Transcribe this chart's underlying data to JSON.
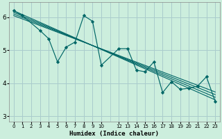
{
  "xlabel": "Humidex (Indice chaleur)",
  "bg_color": "#cceedd",
  "grid_color": "#aacccc",
  "line_color": "#006666",
  "xlim": [
    -0.5,
    23.5
  ],
  "ylim": [
    2.85,
    6.45
  ],
  "yticks": [
    3,
    4,
    5,
    6
  ],
  "xtick_positions": [
    0,
    1,
    2,
    3,
    4,
    5,
    6,
    7,
    8,
    9,
    10,
    12,
    13,
    14,
    15,
    16,
    17,
    18,
    19,
    20,
    21,
    22,
    23
  ],
  "xtick_labels": [
    "0",
    "1",
    "2",
    "3",
    "4",
    "5",
    "6",
    "7",
    "8",
    "9",
    "10",
    "12",
    "13",
    "14",
    "15",
    "16",
    "17",
    "18",
    "19",
    "20",
    "21",
    "22",
    "23"
  ],
  "series": [
    [
      0,
      6.2
    ],
    [
      1,
      6.05
    ],
    [
      3,
      5.6
    ],
    [
      4,
      5.35
    ],
    [
      5,
      4.65
    ],
    [
      6,
      5.1
    ],
    [
      7,
      5.25
    ],
    [
      8,
      6.05
    ],
    [
      9,
      5.88
    ],
    [
      10,
      4.55
    ],
    [
      12,
      5.05
    ],
    [
      13,
      5.05
    ],
    [
      14,
      4.4
    ],
    [
      15,
      4.35
    ],
    [
      16,
      4.65
    ],
    [
      17,
      3.72
    ],
    [
      18,
      4.05
    ],
    [
      19,
      3.82
    ],
    [
      20,
      3.85
    ],
    [
      21,
      3.92
    ],
    [
      22,
      4.2
    ],
    [
      23,
      3.45
    ]
  ],
  "trend_lines": [
    {
      "x0": 0,
      "y0": 6.2,
      "x1": 23,
      "y1": 3.5
    },
    {
      "x0": 0,
      "y0": 6.15,
      "x1": 23,
      "y1": 3.58
    },
    {
      "x0": 0,
      "y0": 6.1,
      "x1": 23,
      "y1": 3.66
    },
    {
      "x0": 0,
      "y0": 6.05,
      "x1": 23,
      "y1": 3.74
    }
  ],
  "xlabel_fontsize": 6.5,
  "ytick_fontsize": 6.5,
  "xtick_fontsize": 5.0
}
